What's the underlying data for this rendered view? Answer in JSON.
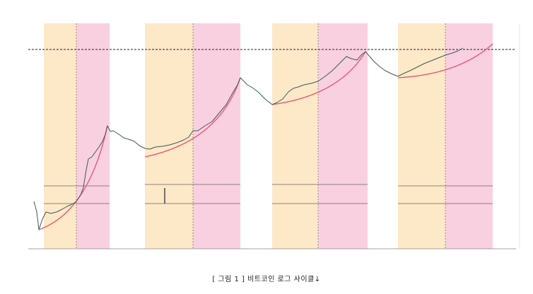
{
  "figure": {
    "caption": "[ 그림 1 ] 비트코인 로그 사이클↓"
  }
}
